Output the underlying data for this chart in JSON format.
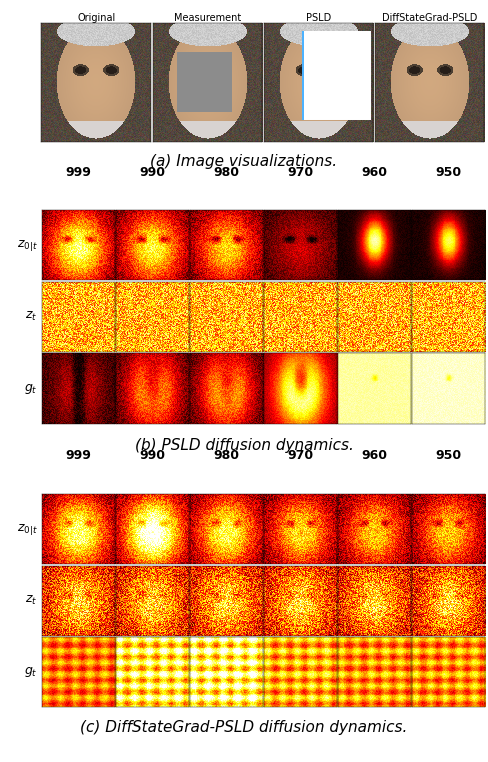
{
  "top_labels": [
    "Original",
    "Measurement",
    "PSLD",
    "DiffStateGrad-PSLD"
  ],
  "col_labels": [
    "999",
    "990",
    "980",
    "970",
    "960",
    "950"
  ],
  "row_labels_b": [
    "$z_{0|t}$",
    "$z_t$",
    "$g_t$"
  ],
  "row_labels_c": [
    "$z_{0|t}$",
    "$z_t$",
    "$g_t$"
  ],
  "caption_a": "(a) Image visualizations.",
  "caption_b": "(b) PSLD diffusion dynamics.",
  "caption_c": "(c) DiffStateGrad-PSLD diffusion dynamics.",
  "bg_color": "#ffffff",
  "caption_fontsize": 11,
  "col_label_fontsize": 9,
  "row_label_fontsize": 9
}
